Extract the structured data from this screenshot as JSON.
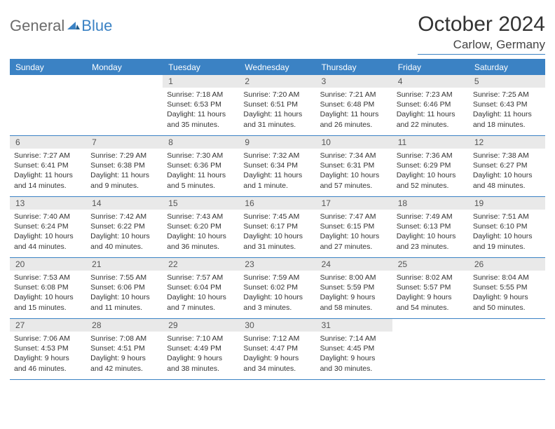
{
  "logo": {
    "general": "General",
    "blue": "Blue"
  },
  "title": "October 2024",
  "location": "Carlow, Germany",
  "colors": {
    "accent": "#3b82c4",
    "weekday_bg": "#3b82c4",
    "weekday_text": "#ffffff",
    "daynum_bg": "#e9e9e9",
    "daynum_text": "#555555",
    "body_text": "#333333"
  },
  "weekdays": [
    "Sunday",
    "Monday",
    "Tuesday",
    "Wednesday",
    "Thursday",
    "Friday",
    "Saturday"
  ],
  "weeks": [
    [
      null,
      null,
      {
        "n": "1",
        "sr": "7:18 AM",
        "ss": "6:53 PM",
        "dl": "11 hours and 35 minutes."
      },
      {
        "n": "2",
        "sr": "7:20 AM",
        "ss": "6:51 PM",
        "dl": "11 hours and 31 minutes."
      },
      {
        "n": "3",
        "sr": "7:21 AM",
        "ss": "6:48 PM",
        "dl": "11 hours and 26 minutes."
      },
      {
        "n": "4",
        "sr": "7:23 AM",
        "ss": "6:46 PM",
        "dl": "11 hours and 22 minutes."
      },
      {
        "n": "5",
        "sr": "7:25 AM",
        "ss": "6:43 PM",
        "dl": "11 hours and 18 minutes."
      }
    ],
    [
      {
        "n": "6",
        "sr": "7:27 AM",
        "ss": "6:41 PM",
        "dl": "11 hours and 14 minutes."
      },
      {
        "n": "7",
        "sr": "7:29 AM",
        "ss": "6:38 PM",
        "dl": "11 hours and 9 minutes."
      },
      {
        "n": "8",
        "sr": "7:30 AM",
        "ss": "6:36 PM",
        "dl": "11 hours and 5 minutes."
      },
      {
        "n": "9",
        "sr": "7:32 AM",
        "ss": "6:34 PM",
        "dl": "11 hours and 1 minute."
      },
      {
        "n": "10",
        "sr": "7:34 AM",
        "ss": "6:31 PM",
        "dl": "10 hours and 57 minutes."
      },
      {
        "n": "11",
        "sr": "7:36 AM",
        "ss": "6:29 PM",
        "dl": "10 hours and 52 minutes."
      },
      {
        "n": "12",
        "sr": "7:38 AM",
        "ss": "6:27 PM",
        "dl": "10 hours and 48 minutes."
      }
    ],
    [
      {
        "n": "13",
        "sr": "7:40 AM",
        "ss": "6:24 PM",
        "dl": "10 hours and 44 minutes."
      },
      {
        "n": "14",
        "sr": "7:42 AM",
        "ss": "6:22 PM",
        "dl": "10 hours and 40 minutes."
      },
      {
        "n": "15",
        "sr": "7:43 AM",
        "ss": "6:20 PM",
        "dl": "10 hours and 36 minutes."
      },
      {
        "n": "16",
        "sr": "7:45 AM",
        "ss": "6:17 PM",
        "dl": "10 hours and 31 minutes."
      },
      {
        "n": "17",
        "sr": "7:47 AM",
        "ss": "6:15 PM",
        "dl": "10 hours and 27 minutes."
      },
      {
        "n": "18",
        "sr": "7:49 AM",
        "ss": "6:13 PM",
        "dl": "10 hours and 23 minutes."
      },
      {
        "n": "19",
        "sr": "7:51 AM",
        "ss": "6:10 PM",
        "dl": "10 hours and 19 minutes."
      }
    ],
    [
      {
        "n": "20",
        "sr": "7:53 AM",
        "ss": "6:08 PM",
        "dl": "10 hours and 15 minutes."
      },
      {
        "n": "21",
        "sr": "7:55 AM",
        "ss": "6:06 PM",
        "dl": "10 hours and 11 minutes."
      },
      {
        "n": "22",
        "sr": "7:57 AM",
        "ss": "6:04 PM",
        "dl": "10 hours and 7 minutes."
      },
      {
        "n": "23",
        "sr": "7:59 AM",
        "ss": "6:02 PM",
        "dl": "10 hours and 3 minutes."
      },
      {
        "n": "24",
        "sr": "8:00 AM",
        "ss": "5:59 PM",
        "dl": "9 hours and 58 minutes."
      },
      {
        "n": "25",
        "sr": "8:02 AM",
        "ss": "5:57 PM",
        "dl": "9 hours and 54 minutes."
      },
      {
        "n": "26",
        "sr": "8:04 AM",
        "ss": "5:55 PM",
        "dl": "9 hours and 50 minutes."
      }
    ],
    [
      {
        "n": "27",
        "sr": "7:06 AM",
        "ss": "4:53 PM",
        "dl": "9 hours and 46 minutes."
      },
      {
        "n": "28",
        "sr": "7:08 AM",
        "ss": "4:51 PM",
        "dl": "9 hours and 42 minutes."
      },
      {
        "n": "29",
        "sr": "7:10 AM",
        "ss": "4:49 PM",
        "dl": "9 hours and 38 minutes."
      },
      {
        "n": "30",
        "sr": "7:12 AM",
        "ss": "4:47 PM",
        "dl": "9 hours and 34 minutes."
      },
      {
        "n": "31",
        "sr": "7:14 AM",
        "ss": "4:45 PM",
        "dl": "9 hours and 30 minutes."
      },
      null,
      null
    ]
  ],
  "labels": {
    "sunrise": "Sunrise:",
    "sunset": "Sunset:",
    "daylight": "Daylight:"
  }
}
